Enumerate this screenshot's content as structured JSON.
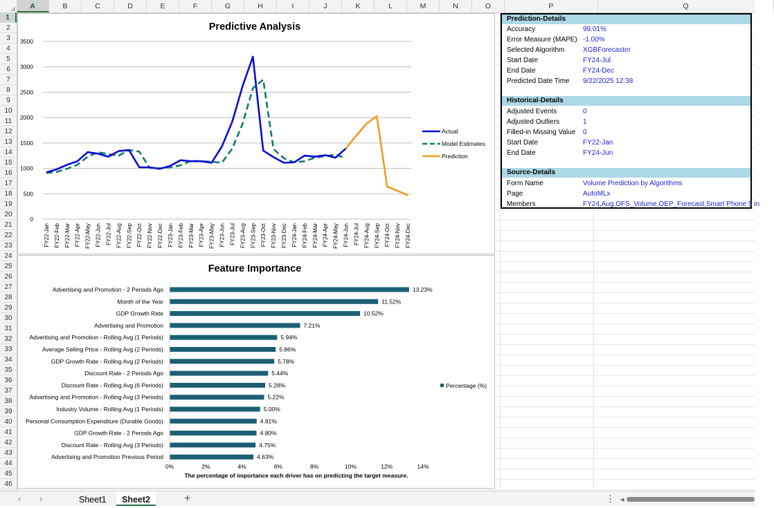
{
  "sheet": {
    "columns": [
      "A",
      "B",
      "C",
      "D",
      "E",
      "F",
      "G",
      "H",
      "I",
      "J",
      "K",
      "L",
      "M",
      "N",
      "O",
      "P",
      "Q"
    ],
    "selected_column": "A",
    "rows": [
      "1",
      "2",
      "3",
      "4",
      "5",
      "6",
      "7",
      "8",
      "9",
      "10",
      "11",
      "12",
      "13",
      "14",
      "15",
      "16",
      "17",
      "18",
      "19",
      "20",
      "21",
      "22",
      "23",
      "24",
      "25",
      "26",
      "27",
      "28",
      "29",
      "30",
      "31",
      "32",
      "33",
      "34",
      "35",
      "36",
      "37",
      "38",
      "39",
      "40",
      "41",
      "42",
      "43",
      "44",
      "45",
      "46"
    ],
    "selected_row": "1"
  },
  "colors": {
    "actual": "#0a0ad6",
    "estimates": "#0e7a6e",
    "prediction": "#f39a21",
    "bars": "#1b5f76",
    "section_header": "#add8e6",
    "value_text": "#1f1fd0"
  },
  "chart_data": [
    {
      "type": "line",
      "title": "Predictive Analysis",
      "x": [
        "FY22-Jan",
        "FY22-Feb",
        "FY22-Mar",
        "FY22-Apr",
        "FY22-May",
        "FY22-Jun",
        "FY22-Jul",
        "FY22-Aug",
        "FY22-Sep",
        "FY22-Oct",
        "FY22-Nov",
        "FY22-Dec",
        "FY23-Jan",
        "FY23-Feb",
        "FY23-Mar",
        "FY23-Apr",
        "FY23-May",
        "FY23-Jun",
        "FY23-Jul",
        "FY23-Aug",
        "FY23-Sep",
        "FY23-Oct",
        "FY23-Nov",
        "FY23-Dec",
        "FY24-Jan",
        "FY24-Feb",
        "FY24-Mar",
        "FY24-Apr",
        "FY24-May",
        "FY24-Jun",
        "FY24-Jul",
        "FY24-Aug",
        "FY24-Sep",
        "FY24-Oct",
        "FY24-Nov",
        "FY24-Dec"
      ],
      "ylim": [
        0,
        3500
      ],
      "yticks": [
        0,
        500,
        1000,
        1500,
        2000,
        2500,
        3000,
        3500
      ],
      "grid": true,
      "legend_position": "right",
      "series": [
        {
          "name": "Actual",
          "style": "solid",
          "values": [
            920,
            980,
            1070,
            1140,
            1320,
            1290,
            1230,
            1340,
            1360,
            1020,
            1020,
            990,
            1050,
            1160,
            1140,
            1140,
            1110,
            1430,
            1920,
            2620,
            3200,
            1350,
            1220,
            1110,
            1120,
            1250,
            1230,
            1260,
            1210,
            1390,
            null,
            null,
            null,
            null,
            null,
            null
          ]
        },
        {
          "name": "Model Estimates",
          "style": "dashed",
          "values": [
            910,
            930,
            990,
            1070,
            1230,
            1320,
            1280,
            1250,
            1360,
            1330,
            1010,
            1000,
            1020,
            1060,
            1150,
            1140,
            1130,
            1110,
            1390,
            1880,
            2580,
            2750,
            1380,
            1200,
            1120,
            1140,
            1210,
            1240,
            1270,
            1200,
            null,
            null,
            null,
            null,
            null,
            null
          ]
        },
        {
          "name": "Prediction",
          "style": "solid",
          "values": [
            null,
            null,
            null,
            null,
            null,
            null,
            null,
            null,
            null,
            null,
            null,
            null,
            null,
            null,
            null,
            null,
            null,
            null,
            null,
            null,
            null,
            null,
            null,
            null,
            null,
            null,
            null,
            null,
            null,
            1390,
            1640,
            1880,
            2030,
            640,
            560,
            470
          ]
        }
      ]
    },
    {
      "type": "bar",
      "orientation": "horizontal",
      "title": "Feature Importance",
      "xlabel": "The percentage of importance each driver has on predicting the target measure.",
      "xlim": [
        0,
        14
      ],
      "xticks": [
        "0%",
        "2%",
        "4%",
        "6%",
        "8%",
        "10%",
        "12%",
        "14%"
      ],
      "legend": "Percentage (%)",
      "categories": [
        "Advertising and Promotion - 2 Periods Ago",
        "Month of the Year",
        "GDP Growth Rate",
        "Advertising and Promotion",
        "Advertising and Promotion - Rolling Avg (1 Periods)",
        "Average Selling Price - Rolling Avg (2 Periods)",
        "GDP Growth Rate - Rolling Avg (2 Periods)",
        "Discount Rate - 2 Periods Ago",
        "Discount Rate - Rolling Avg (6 Periods)",
        "Advertising and Promotion - Rolling Avg (3 Periods)",
        "Industry Volume - Rolling Avg (1 Periods)",
        "Personal Consumption Expenditure (Durable Goods)",
        "GDP Growth Rate - 2 Periods Ago",
        "Discount Rate - Rolling Avg (3 Periods)",
        "Advertising and Promotion Previous Period"
      ],
      "values": [
        13.23,
        11.52,
        10.52,
        7.21,
        5.94,
        5.86,
        5.78,
        5.44,
        5.28,
        5.22,
        5.0,
        4.81,
        4.8,
        4.75,
        4.63
      ],
      "labels": [
        "13.23%",
        "11.52%",
        "10.52%",
        "7.21%",
        "5.94%",
        "5.86%",
        "5.78%",
        "5.44%",
        "5.28%",
        "5.22%",
        "5.00%",
        "4.81%",
        "4.80%",
        "4.75%",
        "4.63%"
      ]
    }
  ],
  "details": {
    "prediction": {
      "header": "Prediction-Details",
      "rows": [
        {
          "label": "Accuracy",
          "value": "99.01%"
        },
        {
          "label": "Error Measure (MAPE)",
          "value": "-1.00%"
        },
        {
          "label": "Selected Algorithm",
          "value": "XGBForecaster"
        },
        {
          "label": "Start Date",
          "value": "FY24-Jul"
        },
        {
          "label": "End Date",
          "value": "FY24-Dec"
        },
        {
          "label": "Predicted Date Time",
          "value": "9/22/2025 12:38"
        }
      ]
    },
    "historical": {
      "header": "Historical-Details",
      "rows": [
        {
          "label": "Adjusted Events",
          "value": "0"
        },
        {
          "label": "Adjusted Outliers",
          "value": "1"
        },
        {
          "label": "Filled-in Missing Value",
          "value": "0"
        },
        {
          "label": "Start Date",
          "value": "FY22-Jan"
        },
        {
          "label": "End Date",
          "value": "FY24-Jun"
        }
      ]
    },
    "source": {
      "header": "Source-Details",
      "rows": [
        {
          "label": "Form Name",
          "value": "Volume Prediction by Algorithms"
        },
        {
          "label": "Page",
          "value": "AutoMLx"
        },
        {
          "label": "Members",
          "value": "FY24,Aug,OFS_Volume,OEP_Forecast,Smart Phone 5 in"
        }
      ]
    }
  },
  "tabs": {
    "items": [
      "Sheet1",
      "Sheet2"
    ],
    "active": "Sheet2",
    "add_label": "+",
    "prev_icon": "‹",
    "next_icon": "›",
    "more_icon": "⋮",
    "scroll_left_icon": "◂"
  }
}
